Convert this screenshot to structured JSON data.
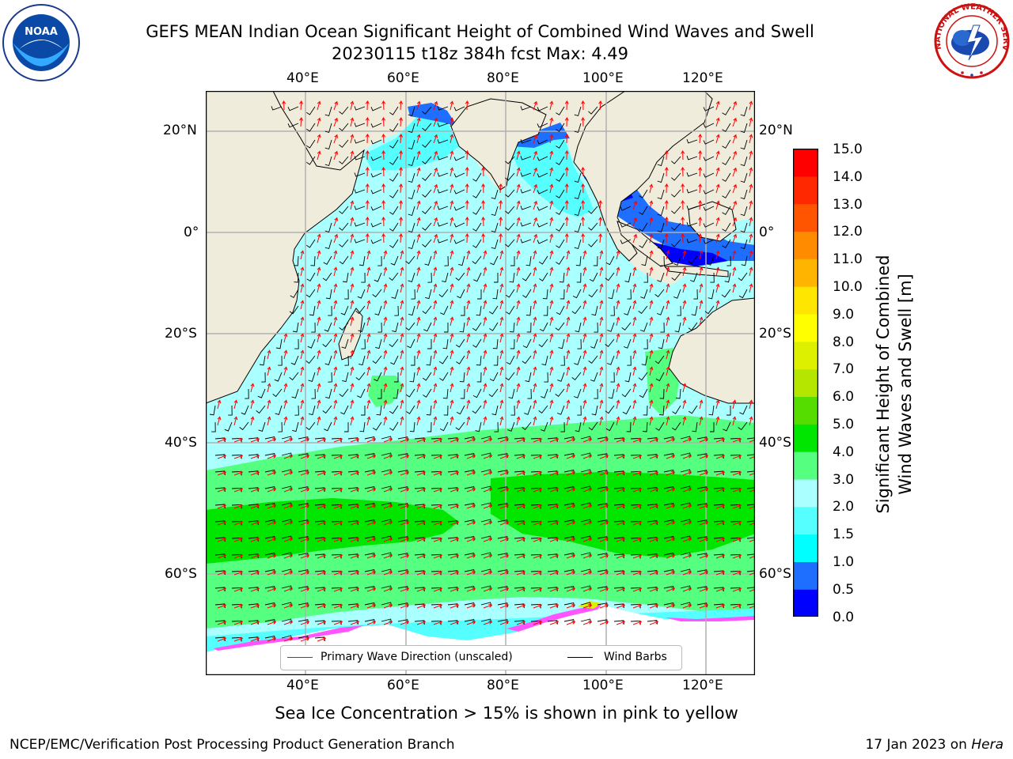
{
  "header": {
    "title_line1": "GEFS MEAN Indian Ocean Significant Height of Combined Wind Waves and Swell",
    "title_line2": "20230115 t18z 384h fcst   Max: 4.49"
  },
  "logos": {
    "noaa_text": "NOAA",
    "nws_text": "NATIONAL WEATHER SERVICE"
  },
  "map": {
    "lon_labels": [
      "40°E",
      "60°E",
      "80°E",
      "100°E",
      "120°E"
    ],
    "lat_labels": [
      "20°N",
      "0°",
      "20°S",
      "40°S",
      "60°S"
    ],
    "land_color": "#efecdc",
    "grid_color": "#b0b0b0"
  },
  "colorbar": {
    "label_line1": "Significant Height of Combined",
    "label_line2": "Wind Waves and Swell [m]",
    "ticks": [
      "0.0",
      "0.5",
      "1.0",
      "1.5",
      "2.0",
      "3.0",
      "4.0",
      "5.0",
      "6.0",
      "7.0",
      "8.0",
      "9.0",
      "10.0",
      "11.0",
      "12.0",
      "13.0",
      "14.0",
      "15.0"
    ],
    "colors": [
      "#0000ff",
      "#1e6eff",
      "#00ffff",
      "#55ffff",
      "#aaffff",
      "#55ff80",
      "#00e600",
      "#55dd00",
      "#b4e600",
      "#dcf000",
      "#ffff00",
      "#ffe600",
      "#ffb400",
      "#ff8c00",
      "#ff5500",
      "#ff2800",
      "#ff0000"
    ]
  },
  "legend": {
    "wave_label": "Primary Wave Direction (unscaled)",
    "wave_color": "#ff0000",
    "wind_label": "Wind Barbs",
    "wind_color": "#000000"
  },
  "notes": {
    "sea_ice": "Sea Ice Concentration > 15% is shown in pink to yellow"
  },
  "footer": {
    "left": "NCEP/EMC/Verification Post Processing Product Generation Branch",
    "date": "17 Jan 2023 on ",
    "host": "Hera"
  }
}
